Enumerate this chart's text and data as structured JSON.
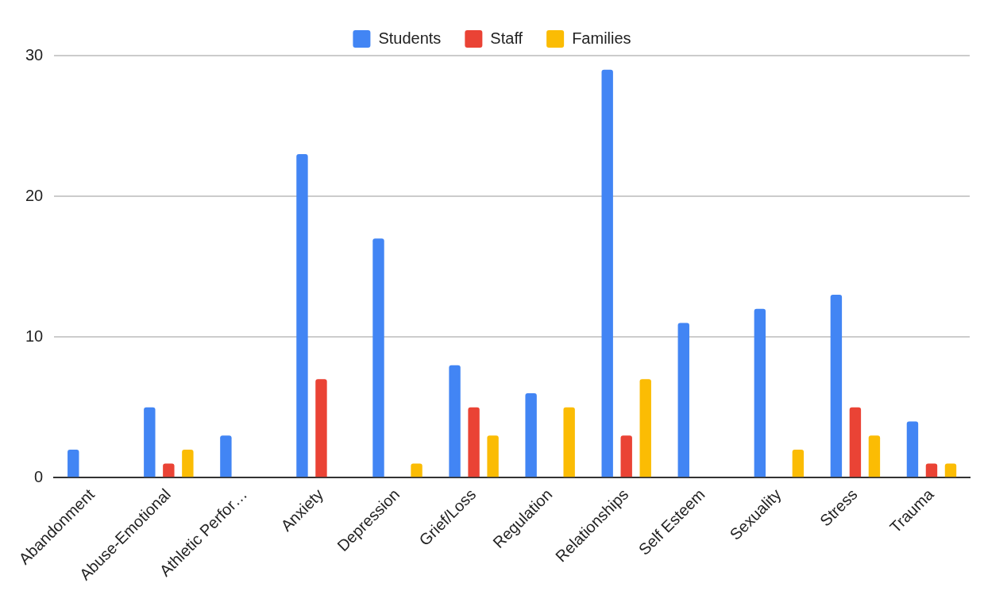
{
  "chart_data": {
    "type": "bar",
    "categories": [
      "Abandonment",
      "Abuse-Emotional",
      "Athletic Perfor…",
      "Anxiety",
      "Depression",
      "Grief/Loss",
      "Regulation",
      "Relationships",
      "Self Esteem",
      "Sexuality",
      "Stress",
      "Trauma"
    ],
    "series": [
      {
        "name": "Students",
        "color": "#4285f4",
        "values": [
          2,
          5,
          3,
          23,
          17,
          8,
          6,
          29,
          11,
          12,
          13,
          4
        ]
      },
      {
        "name": "Staff",
        "color": "#ea4335",
        "values": [
          0,
          1,
          0,
          7,
          0,
          5,
          0,
          3,
          0,
          0,
          5,
          1
        ]
      },
      {
        "name": "Families",
        "color": "#fbbc04",
        "values": [
          0,
          2,
          0,
          0,
          1,
          3,
          5,
          7,
          0,
          2,
          3,
          1
        ]
      }
    ],
    "ylim": [
      0,
      30
    ],
    "yticks": [
      0,
      10,
      20,
      30
    ],
    "grid": "y",
    "legend": "top"
  }
}
